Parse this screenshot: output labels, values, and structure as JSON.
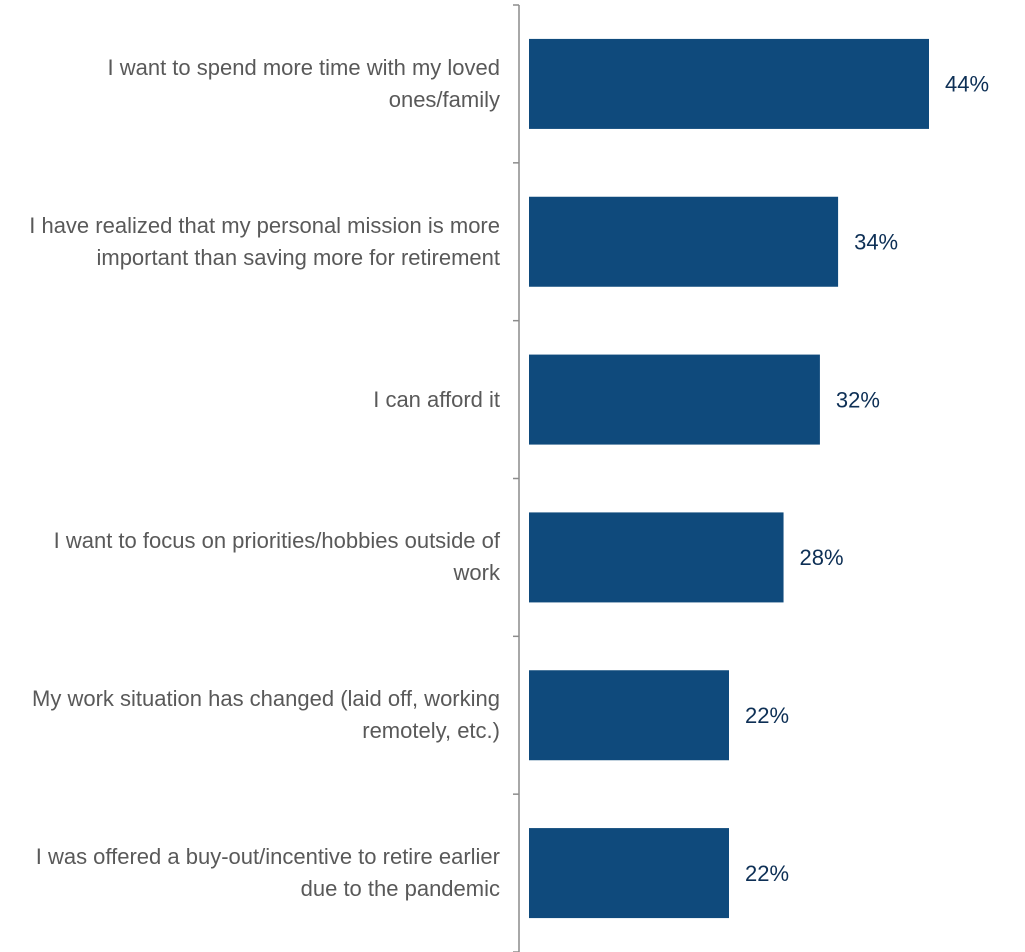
{
  "chart_data": {
    "type": "bar",
    "orientation": "horizontal",
    "color": "#0f4a7c",
    "categories": [
      "I want to spend more time with my loved ones/family",
      "I have realized that my personal mission is more important than saving more for retirement",
      "I can afford it",
      "I want to focus on priorities/hobbies outside of work",
      "My work situation has changed (laid off, working remotely, etc.)",
      "I was offered a buy-out/incentive to retire earlier due to the pandemic"
    ],
    "values": [
      44,
      34,
      32,
      28,
      22,
      22
    ],
    "value_labels": [
      "44%",
      "34%",
      "32%",
      "28%",
      "22%",
      "22%"
    ]
  }
}
